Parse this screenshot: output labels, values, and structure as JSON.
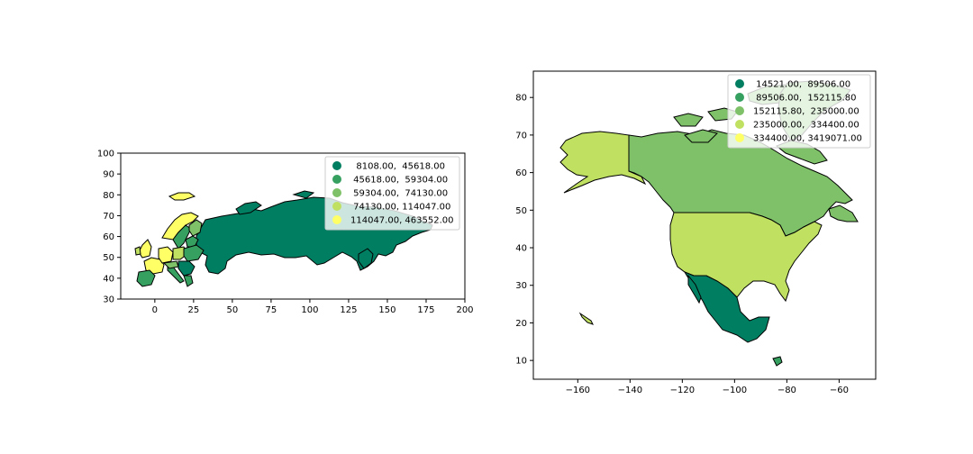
{
  "chart_data": [
    {
      "type": "choropleth",
      "title": "",
      "xlabel": "",
      "ylabel": "",
      "xlim": [
        -22,
        200
      ],
      "ylim": [
        30,
        100
      ],
      "xticks": [
        0,
        25,
        50,
        75,
        100,
        125,
        150,
        175,
        200
      ],
      "yticks": [
        30,
        40,
        50,
        60,
        70,
        80,
        90,
        100
      ],
      "xtick_labels": [
        "0",
        "25",
        "50",
        "75",
        "100",
        "125",
        "150",
        "175",
        "200"
      ],
      "ytick_labels": [
        "30",
        "40",
        "50",
        "60",
        "70",
        "80",
        "90",
        "100"
      ],
      "legend_position": "top-right",
      "legend": [
        {
          "label": "  8108.00,  45618.00",
          "color": "#007e62"
        },
        {
          "label": " 45618.00,  59304.00",
          "color": "#35a060"
        },
        {
          "label": " 59304.00,  74130.00",
          "color": "#7ec168"
        },
        {
          "label": " 74130.00, 114047.00",
          "color": "#c0e062"
        },
        {
          "label": "114047.00, 463552.00",
          "color": "#ffff66"
        }
      ]
    },
    {
      "type": "choropleth",
      "title": "",
      "xlabel": "",
      "ylabel": "",
      "xlim": [
        -177,
        -46
      ],
      "ylim": [
        5,
        87
      ],
      "xticks": [
        -160,
        -140,
        -120,
        -100,
        -80,
        -60
      ],
      "yticks": [
        10,
        20,
        30,
        40,
        50,
        60,
        70,
        80
      ],
      "xtick_labels": [
        "−160",
        "−140",
        "−120",
        "−100",
        "−80",
        "−60"
      ],
      "ytick_labels": [
        "10",
        "20",
        "30",
        "40",
        "50",
        "60",
        "70",
        "80"
      ],
      "legend_position": "top-right",
      "legend": [
        {
          "label": " 14521.00,  89506.00",
          "color": "#007e62"
        },
        {
          "label": " 89506.00,  152115.80",
          "color": "#35a060"
        },
        {
          "label": "152115.80,  235000.00",
          "color": "#7ec168"
        },
        {
          "label": "235000.00,  334400.00",
          "color": "#c0e062"
        },
        {
          "label": "334400.00, 3419071.00",
          "color": "#ffff66"
        }
      ]
    }
  ],
  "colors": {
    "class0": "#007e62",
    "class1": "#35a060",
    "class2": "#7ec168",
    "class3": "#c0e062",
    "class4": "#ffff66"
  }
}
